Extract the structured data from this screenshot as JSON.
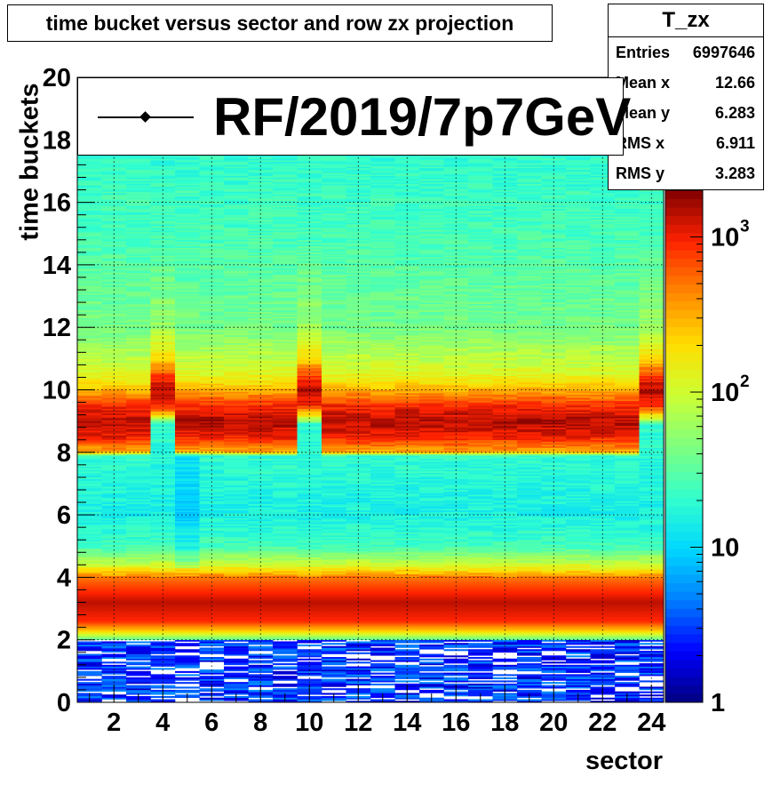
{
  "title": "time bucket versus sector and row zx projection",
  "stats": {
    "name": "T_zx",
    "rows": [
      {
        "label": "Entries",
        "value": "6997646"
      },
      {
        "label": "Mean x",
        "value": "12.66"
      },
      {
        "label": "Mean y",
        "value": "6.283"
      },
      {
        "label": "RMS x",
        "value": "6.911"
      },
      {
        "label": "RMS y",
        "value": "3.283"
      }
    ]
  },
  "legend": {
    "label": "RF/2019/7p7GeV"
  },
  "chart_data": {
    "type": "heatmap",
    "xlabel": "sector",
    "ylabel": "time buckets",
    "xlim": [
      0.5,
      24.5
    ],
    "ylim": [
      0,
      20
    ],
    "x_ticks": [
      2,
      4,
      6,
      8,
      10,
      12,
      14,
      16,
      18,
      20,
      22,
      24
    ],
    "y_ticks": [
      0,
      2,
      4,
      6,
      8,
      10,
      12,
      14,
      16,
      18,
      20
    ],
    "z_scale": "log",
    "zlim": [
      1,
      2000
    ],
    "z_ticks": [
      {
        "value": 1,
        "base": "1",
        "exp": ""
      },
      {
        "value": 10,
        "base": "10",
        "exp": ""
      },
      {
        "value": 100,
        "base": "10",
        "exp": "2"
      },
      {
        "value": 1000,
        "base": "10",
        "exp": "3"
      }
    ],
    "grid": true,
    "colormap": [
      "#00007f",
      "#0000ff",
      "#007fff",
      "#00d8ff",
      "#33ffcc",
      "#7fff7f",
      "#ccff33",
      "#ffdd00",
      "#ff8800",
      "#ff2200",
      "#7f0000"
    ],
    "profile_default": [
      {
        "t": 0.0,
        "z": 2
      },
      {
        "t": 1.9,
        "z": 3
      },
      {
        "t": 2.0,
        "z": 30
      },
      {
        "t": 2.3,
        "z": 250
      },
      {
        "t": 2.6,
        "z": 900
      },
      {
        "t": 3.2,
        "z": 1400
      },
      {
        "t": 4.0,
        "z": 500
      },
      {
        "t": 4.4,
        "z": 100
      },
      {
        "t": 5.0,
        "z": 25
      },
      {
        "t": 6.0,
        "z": 15
      },
      {
        "t": 7.9,
        "z": 20
      },
      {
        "t": 8.0,
        "z": 300
      },
      {
        "t": 8.5,
        "z": 1000
      },
      {
        "t": 9.0,
        "z": 1500
      },
      {
        "t": 9.5,
        "z": 900
      },
      {
        "t": 10.0,
        "z": 300
      },
      {
        "t": 10.5,
        "z": 120
      },
      {
        "t": 12.0,
        "z": 40
      },
      {
        "t": 15.0,
        "z": 25
      },
      {
        "t": 17.5,
        "z": 20
      },
      {
        "t": 20.0,
        "z": 20
      }
    ],
    "profile_shifted": [
      {
        "t": 0.0,
        "z": 2
      },
      {
        "t": 1.9,
        "z": 3
      },
      {
        "t": 2.0,
        "z": 30
      },
      {
        "t": 2.3,
        "z": 250
      },
      {
        "t": 2.6,
        "z": 900
      },
      {
        "t": 3.2,
        "z": 1400
      },
      {
        "t": 4.0,
        "z": 500
      },
      {
        "t": 4.4,
        "z": 100
      },
      {
        "t": 5.0,
        "z": 25
      },
      {
        "t": 6.0,
        "z": 15
      },
      {
        "t": 8.9,
        "z": 20
      },
      {
        "t": 9.2,
        "z": 200
      },
      {
        "t": 9.5,
        "z": 900
      },
      {
        "t": 10.0,
        "z": 1500
      },
      {
        "t": 10.5,
        "z": 700
      },
      {
        "t": 11.0,
        "z": 200
      },
      {
        "t": 12.0,
        "z": 60
      },
      {
        "t": 15.0,
        "z": 25
      },
      {
        "t": 17.5,
        "z": 20
      },
      {
        "t": 20.0,
        "z": 20
      }
    ],
    "shifted_sectors": [
      4,
      10,
      24
    ],
    "low_signal_sectors": [
      5
    ]
  }
}
